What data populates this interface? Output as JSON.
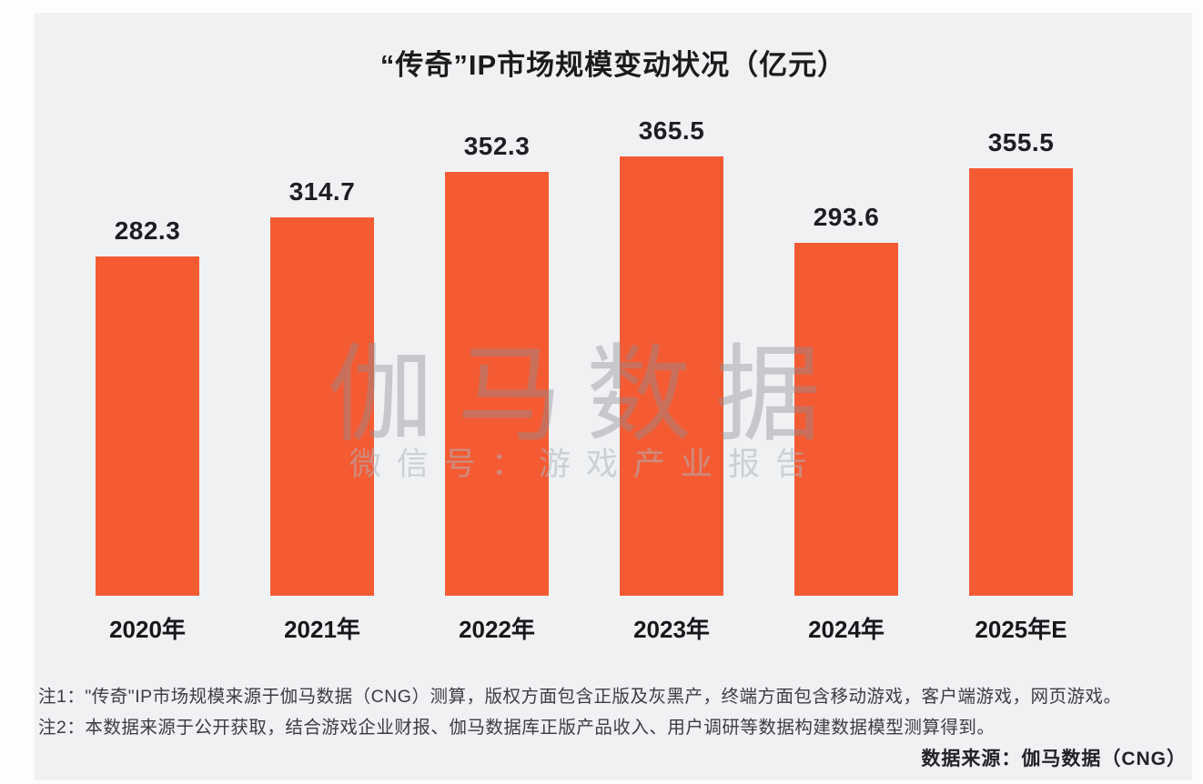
{
  "title": "“传奇”IP市场规模变动状况（亿元）",
  "chart_data": {
    "type": "bar",
    "title": "“传奇”IP市场规模变动状况（亿元）",
    "categories": [
      "2020年",
      "2021年",
      "2022年",
      "2023年",
      "2024年",
      "2025年E"
    ],
    "values": [
      282.3,
      314.7,
      352.3,
      365.5,
      293.6,
      355.5
    ],
    "value_labels": [
      "282.3",
      "314.7",
      "352.3",
      "365.5",
      "293.6",
      "355.5"
    ],
    "xlabel": "",
    "ylabel": "亿元",
    "ylim": [
      0,
      400
    ],
    "grid": false,
    "legend": "none",
    "bar_color": "#f45b33",
    "background_color": "#f0f1f3"
  },
  "watermark": {
    "main": "伽马数据",
    "sub": "微信号：游戏产业报告"
  },
  "notes": {
    "note1": "注1：\"传奇\"IP市场规模来源于伽马数据（CNG）测算，版权方面包含正版及灰黑产，终端方面包含移动游戏，客户端游戏，网页游戏。",
    "note2": "注2：本数据来源于公开获取，结合游戏企业财报、伽马数据库正版产品收入、用户调研等数据构建数据模型测算得到。"
  },
  "source": "数据来源：伽马数据（CNG）"
}
